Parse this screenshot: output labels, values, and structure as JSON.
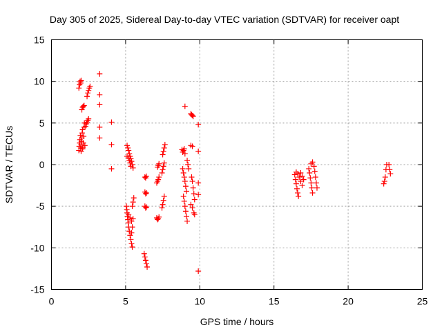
{
  "chart_data": {
    "type": "scatter",
    "title": "Day 305 of 2025, Sidereal Day-to-day VTEC variation (SDTVAR) for receiver oapt",
    "xlabel": "GPS time / hours",
    "ylabel": "SDTVAR / TECUs",
    "xlim": [
      0,
      25
    ],
    "ylim": [
      -15,
      15
    ],
    "x_ticks": [
      0,
      5,
      10,
      15,
      20,
      25
    ],
    "y_ticks": [
      -15,
      -10,
      -5,
      0,
      5,
      10,
      15
    ],
    "grid": true,
    "marker": "plus",
    "color": "#ff0000",
    "series": [
      {
        "name": "",
        "points": [
          [
            1.85,
            9.2
          ],
          [
            1.9,
            9.6
          ],
          [
            1.93,
            10.0
          ],
          [
            1.97,
            9.8
          ],
          [
            2.0,
            10.1
          ],
          [
            1.85,
            1.7
          ],
          [
            1.87,
            2.2
          ],
          [
            1.9,
            2.6
          ],
          [
            1.92,
            3.0
          ],
          [
            1.95,
            3.5
          ],
          [
            1.97,
            2.0
          ],
          [
            2.0,
            2.4
          ],
          [
            2.02,
            2.8
          ],
          [
            2.05,
            3.2
          ],
          [
            2.07,
            3.8
          ],
          [
            2.1,
            4.2
          ],
          [
            2.12,
            2.1
          ],
          [
            2.15,
            2.6
          ],
          [
            2.17,
            3.4
          ],
          [
            2.2,
            4.5
          ],
          [
            2.22,
            5.0
          ],
          [
            2.25,
            2.3
          ],
          [
            2.1,
            1.9
          ],
          [
            2.0,
            1.6
          ],
          [
            2.05,
            6.6
          ],
          [
            2.1,
            6.9
          ],
          [
            2.15,
            7.0
          ],
          [
            2.2,
            7.1
          ],
          [
            2.3,
            4.6
          ],
          [
            2.35,
            4.9
          ],
          [
            2.4,
            5.1
          ],
          [
            2.45,
            5.3
          ],
          [
            2.5,
            5.5
          ],
          [
            2.4,
            8.2
          ],
          [
            2.45,
            8.6
          ],
          [
            2.5,
            8.9
          ],
          [
            2.55,
            9.2
          ],
          [
            2.6,
            9.4
          ],
          [
            3.25,
            10.9
          ],
          [
            3.25,
            8.4
          ],
          [
            3.25,
            7.2
          ],
          [
            3.25,
            4.5
          ],
          [
            3.25,
            3.2
          ],
          [
            4.05,
            5.1
          ],
          [
            4.05,
            2.4
          ],
          [
            4.05,
            -0.5
          ],
          [
            5.05,
            -5.0
          ],
          [
            5.08,
            -5.4
          ],
          [
            5.1,
            -5.8
          ],
          [
            5.12,
            -6.2
          ],
          [
            5.15,
            -6.6
          ],
          [
            5.18,
            -7.0
          ],
          [
            5.2,
            -7.5
          ],
          [
            5.25,
            -8.0
          ],
          [
            5.3,
            -8.5
          ],
          [
            5.35,
            -9.0
          ],
          [
            5.4,
            -9.5
          ],
          [
            5.45,
            -9.9
          ],
          [
            5.2,
            -6.0
          ],
          [
            5.3,
            -6.4
          ],
          [
            5.4,
            -6.8
          ],
          [
            5.45,
            -5.0
          ],
          [
            5.5,
            -4.5
          ],
          [
            5.55,
            -4.0
          ],
          [
            5.5,
            -6.5
          ],
          [
            5.45,
            -7.5
          ],
          [
            5.4,
            -8.2
          ],
          [
            5.1,
            2.3
          ],
          [
            5.15,
            2.0
          ],
          [
            5.2,
            1.7
          ],
          [
            5.25,
            1.3
          ],
          [
            5.3,
            1.0
          ],
          [
            5.35,
            0.7
          ],
          [
            5.4,
            0.4
          ],
          [
            5.45,
            0.0
          ],
          [
            5.5,
            -0.4
          ],
          [
            5.1,
            1.0
          ],
          [
            5.2,
            0.8
          ],
          [
            5.25,
            0.5
          ],
          [
            5.3,
            0.2
          ],
          [
            5.35,
            -0.2
          ],
          [
            6.25,
            -10.7
          ],
          [
            6.3,
            -11.1
          ],
          [
            6.35,
            -11.5
          ],
          [
            6.4,
            -11.9
          ],
          [
            6.45,
            -12.3
          ],
          [
            6.3,
            -1.5
          ],
          [
            6.35,
            -1.6
          ],
          [
            6.4,
            -1.4
          ],
          [
            6.3,
            -3.3
          ],
          [
            6.35,
            -3.5
          ],
          [
            6.4,
            -3.4
          ],
          [
            6.3,
            -5.0
          ],
          [
            6.35,
            -5.2
          ],
          [
            6.4,
            -5.1
          ],
          [
            7.1,
            -6.4
          ],
          [
            7.15,
            -6.6
          ],
          [
            7.2,
            -6.5
          ],
          [
            7.25,
            -6.3
          ],
          [
            7.1,
            -2.2
          ],
          [
            7.15,
            -2.0
          ],
          [
            7.2,
            -1.8
          ],
          [
            7.25,
            -1.5
          ],
          [
            7.15,
            -0.3
          ],
          [
            7.2,
            -0.1
          ],
          [
            7.25,
            0.1
          ],
          [
            7.45,
            -5.2
          ],
          [
            7.5,
            -4.8
          ],
          [
            7.55,
            -4.3
          ],
          [
            7.6,
            -3.8
          ],
          [
            7.45,
            -1.0
          ],
          [
            7.5,
            -0.6
          ],
          [
            7.55,
            -0.2
          ],
          [
            7.6,
            0.2
          ],
          [
            7.5,
            1.2
          ],
          [
            7.55,
            1.6
          ],
          [
            7.6,
            2.0
          ],
          [
            7.65,
            2.4
          ],
          [
            8.8,
            1.8
          ],
          [
            8.85,
            1.5
          ],
          [
            8.9,
            1.7
          ],
          [
            8.95,
            1.9
          ],
          [
            9.0,
            1.3
          ],
          [
            8.85,
            -0.5
          ],
          [
            8.9,
            -1.0
          ],
          [
            8.95,
            -1.5
          ],
          [
            9.0,
            -2.0
          ],
          [
            9.05,
            -2.6
          ],
          [
            9.1,
            -3.2
          ],
          [
            8.9,
            -3.8
          ],
          [
            8.95,
            -4.4
          ],
          [
            9.0,
            -5.0
          ],
          [
            9.05,
            -5.6
          ],
          [
            9.1,
            -6.2
          ],
          [
            9.15,
            -6.8
          ],
          [
            9.0,
            7.0
          ],
          [
            9.15,
            0.5
          ],
          [
            9.2,
            0.0
          ],
          [
            9.25,
            -0.5
          ],
          [
            9.4,
            6.1
          ],
          [
            9.45,
            6.0
          ],
          [
            9.5,
            5.9
          ],
          [
            9.55,
            5.8
          ],
          [
            9.4,
            2.3
          ],
          [
            9.5,
            2.2
          ],
          [
            9.45,
            -1.5
          ],
          [
            9.5,
            -2.0
          ],
          [
            9.55,
            -2.8
          ],
          [
            9.6,
            -3.5
          ],
          [
            9.65,
            -4.2
          ],
          [
            9.4,
            -4.8
          ],
          [
            9.5,
            -5.2
          ],
          [
            9.6,
            -5.8
          ],
          [
            9.65,
            -6.0
          ],
          [
            9.9,
            4.8
          ],
          [
            9.9,
            1.6
          ],
          [
            9.9,
            -2.2
          ],
          [
            9.9,
            -3.6
          ],
          [
            9.9,
            -12.8
          ],
          [
            16.4,
            -1.2
          ],
          [
            16.45,
            -1.8
          ],
          [
            16.5,
            -2.3
          ],
          [
            16.55,
            -2.9
          ],
          [
            16.6,
            -3.4
          ],
          [
            16.65,
            -3.8
          ],
          [
            16.5,
            -0.9
          ],
          [
            16.6,
            -1.1
          ],
          [
            16.7,
            -1.5
          ],
          [
            16.8,
            -2.0
          ],
          [
            16.9,
            -2.5
          ],
          [
            16.8,
            -1.0
          ],
          [
            16.9,
            -1.4
          ],
          [
            17.0,
            -1.8
          ],
          [
            17.35,
            -0.5
          ],
          [
            17.4,
            -1.0
          ],
          [
            17.45,
            -1.6
          ],
          [
            17.5,
            -2.2
          ],
          [
            17.55,
            -2.8
          ],
          [
            17.6,
            -3.4
          ],
          [
            17.5,
            0.1
          ],
          [
            17.6,
            0.3
          ],
          [
            17.7,
            -0.2
          ],
          [
            17.75,
            -0.8
          ],
          [
            17.8,
            -1.5
          ],
          [
            17.85,
            -2.2
          ],
          [
            17.9,
            -2.8
          ],
          [
            22.4,
            -2.3
          ],
          [
            22.45,
            -2.0
          ],
          [
            22.5,
            -1.5
          ],
          [
            22.55,
            -0.6
          ],
          [
            22.6,
            0.0
          ],
          [
            22.75,
            0.0
          ],
          [
            22.8,
            -0.6
          ],
          [
            22.85,
            -1.1
          ]
        ]
      }
    ]
  }
}
